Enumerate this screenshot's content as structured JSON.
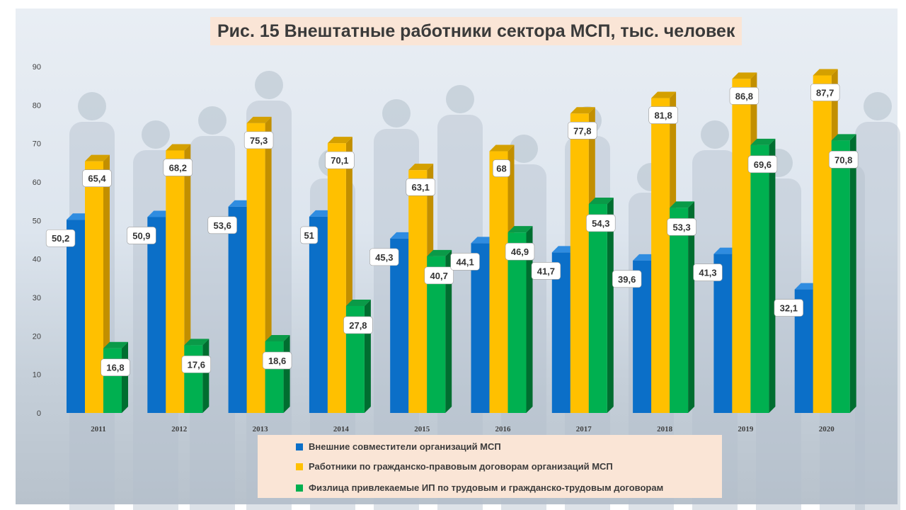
{
  "title": "Рис. 15 Внештатные работники сектора МСП, тыс. человек",
  "colors": {
    "blue": "#0b6fc8",
    "blue_top": "#2f8ce0",
    "blue_side": "#084f92",
    "gold": "#ffc000",
    "gold_top": "#d4a000",
    "gold_side": "#c28f00",
    "green": "#00b050",
    "green_top": "#0a9a48",
    "green_side": "#006e30",
    "label_bg": "#ffffff",
    "label_text": "#333333",
    "axis_text": "#404040",
    "legend_bg": "#fae5d6",
    "title_bg": "#fae5d6"
  },
  "chart_data": {
    "type": "bar",
    "title": "Рис. 15 Внештатные работники сектора МСП, тыс. человек",
    "xlabel": "",
    "ylabel": "",
    "categories": [
      "2011",
      "2012",
      "2013",
      "2014",
      "2015",
      "2016",
      "2017",
      "2018",
      "2019",
      "2020"
    ],
    "ylim": [
      0,
      90
    ],
    "yticks": [
      "0",
      "10",
      "20",
      "30",
      "40",
      "50",
      "60",
      "70",
      "80",
      "90"
    ],
    "grid": false,
    "legend_position": "bottom",
    "series": [
      {
        "name": "Внешние совместители организаций МСП",
        "color": "blue",
        "values": [
          50.2,
          50.9,
          53.6,
          51,
          45.3,
          44.1,
          41.7,
          39.6,
          41.3,
          32.1
        ],
        "labels": [
          "50,2",
          "50,9",
          "53,6",
          "51",
          "45,3",
          "44,1",
          "41,7",
          "39,6",
          "41,3",
          "32,1"
        ]
      },
      {
        "name": "Работники по гражданско-правовым договорам организаций МСП",
        "color": "gold",
        "values": [
          65.4,
          68.2,
          75.3,
          70.1,
          63.1,
          68,
          77.8,
          81.8,
          86.8,
          87.7
        ],
        "labels": [
          "65,4",
          "68,2",
          "75,3",
          "70,1",
          "63,1",
          "68",
          "77,8",
          "81,8",
          "86,8",
          "87,7"
        ]
      },
      {
        "name": "Физлица привлекаемые ИП по трудовым и гражданско-трудовым договорам",
        "color": "green",
        "values": [
          16.8,
          17.6,
          18.6,
          27.8,
          40.7,
          46.9,
          54.3,
          53.3,
          69.6,
          70.8
        ],
        "labels": [
          "16,8",
          "17,6",
          "18,6",
          "27,8",
          "40,7",
          "46,9",
          "54,3",
          "53,3",
          "69,6",
          "70,8"
        ]
      }
    ]
  }
}
